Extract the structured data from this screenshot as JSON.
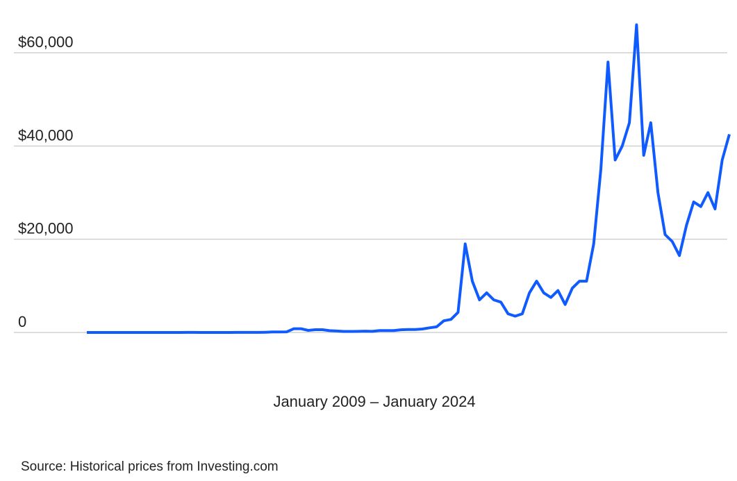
{
  "chart_data": {
    "type": "line",
    "x_label": "January 2009 – January 2024",
    "source": "Source: Historical prices from Investing.com",
    "color": "#0f5bff",
    "values": [
      0,
      0,
      0,
      0,
      0,
      0,
      0,
      0,
      0,
      0,
      0,
      0,
      1,
      5,
      15,
      8,
      5,
      3,
      6,
      5,
      5,
      8,
      12,
      13,
      20,
      50,
      100,
      100,
      130,
      800,
      800,
      450,
      600,
      600,
      380,
      320,
      230,
      230,
      240,
      280,
      240,
      400,
      400,
      410,
      580,
      620,
      630,
      750,
      1000,
      1200,
      2500,
      2800,
      4300,
      19000,
      11000,
      7000,
      8500,
      7000,
      6500,
      4000,
      3500,
      4000,
      8500,
      11000,
      8500,
      7500,
      9000,
      6000,
      9500,
      11000,
      11000,
      19000,
      35000,
      58000,
      37000,
      40000,
      45000,
      66000,
      38000,
      45000,
      30000,
      21000,
      19500,
      16500,
      23000,
      28000,
      27000,
      30000,
      26500,
      37000,
      42500
    ],
    "ylim": [
      0,
      60000
    ],
    "yticks": [
      0,
      {
        "value": 20000,
        "label": "$20,000"
      },
      {
        "value": 40000,
        "label": "$40,000"
      },
      {
        "value": 60000,
        "label": "$60,000"
      }
    ],
    "grid": true
  }
}
